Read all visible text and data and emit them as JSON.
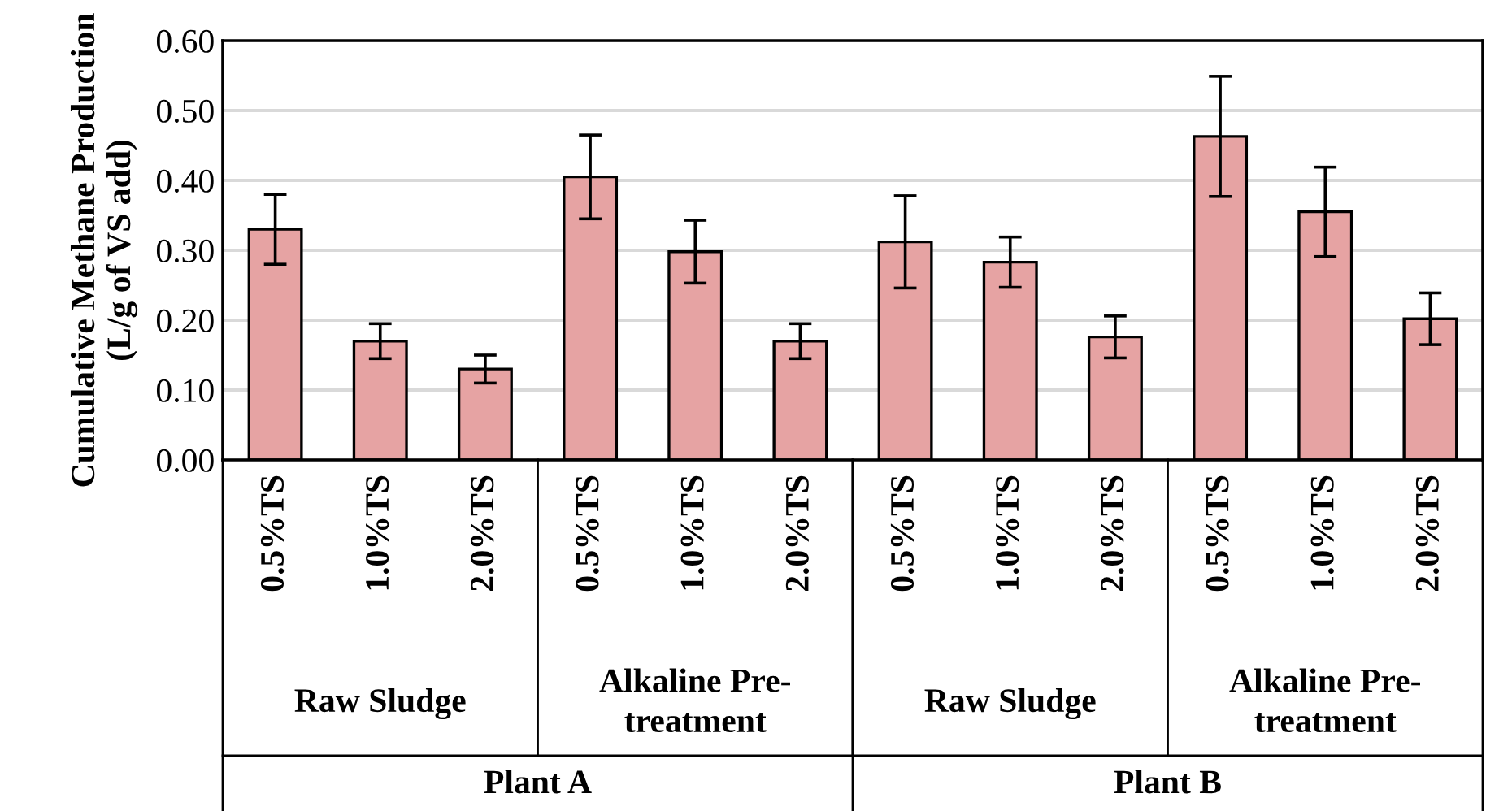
{
  "chart_data": {
    "type": "bar",
    "ylabel": "Cumulative Methane Production\n(L/g of VS add)",
    "categories": [
      "0.5%TS",
      "1.0%TS",
      "2.0%TS",
      "0.5%TS",
      "1.0%TS",
      "2.0%TS",
      "0.5%TS",
      "1.0%TS",
      "2.0%TS",
      "0.5%TS",
      "1.0%TS",
      "2.0%TS"
    ],
    "values": [
      0.33,
      0.17,
      0.13,
      0.405,
      0.298,
      0.17,
      0.312,
      0.283,
      0.176,
      0.463,
      0.355,
      0.202
    ],
    "errors": [
      0.05,
      0.025,
      0.02,
      0.06,
      0.045,
      0.025,
      0.066,
      0.036,
      0.03,
      0.086,
      0.064,
      0.037
    ],
    "color": "#e6a3a3",
    "ylim": [
      0,
      0.6
    ],
    "yticks": [
      {
        "value": 0,
        "label": "0.00"
      },
      {
        "value": 0.1,
        "label": "0.10"
      },
      {
        "value": 0.2,
        "label": "0.20"
      },
      {
        "value": 0.3,
        "label": "0.30"
      },
      {
        "value": 0.4,
        "label": "0.40"
      },
      {
        "value": 0.5,
        "label": "0.50"
      },
      {
        "value": 0.6,
        "label": "0.60"
      }
    ],
    "grid": "y",
    "annotations": [
      "Raw Sludge",
      "Alkaline Pre-\ntreatment",
      "Raw Sludge",
      "Alkaline Pre-\ntreatment",
      "Plant A",
      "Plant B"
    ]
  }
}
